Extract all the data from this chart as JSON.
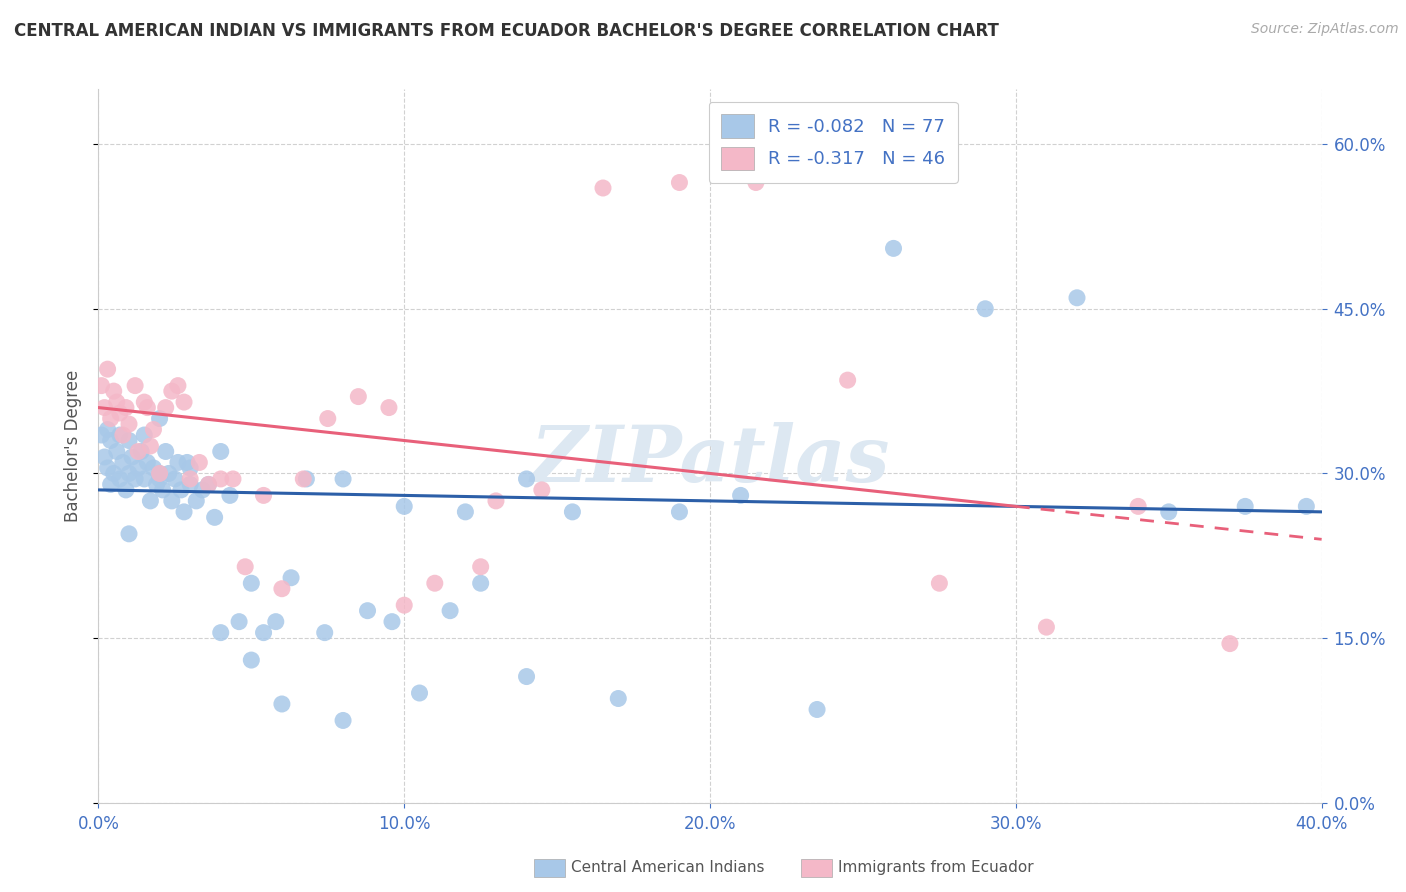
{
  "title": "CENTRAL AMERICAN INDIAN VS IMMIGRANTS FROM ECUADOR BACHELOR'S DEGREE CORRELATION CHART",
  "source": "Source: ZipAtlas.com",
  "ylabel": "Bachelor's Degree",
  "xmin": 0.0,
  "xmax": 0.4,
  "ymin": 0.0,
  "ymax": 0.65,
  "yticks": [
    0.0,
    0.15,
    0.3,
    0.45,
    0.6
  ],
  "xticks": [
    0.0,
    0.1,
    0.2,
    0.3,
    0.4
  ],
  "legend_r1": "-0.082",
  "legend_n1": "77",
  "legend_r2": "-0.317",
  "legend_n2": "46",
  "legend_label1": "Central American Indians",
  "legend_label2": "Immigrants from Ecuador",
  "color_blue": "#a8c8e8",
  "color_pink": "#f4b8c8",
  "color_blue_line": "#2c5fa8",
  "color_pink_line": "#e8607a",
  "watermark": "ZIPatlas",
  "blue_x": [
    0.001,
    0.002,
    0.003,
    0.003,
    0.004,
    0.004,
    0.005,
    0.006,
    0.007,
    0.007,
    0.008,
    0.009,
    0.01,
    0.01,
    0.011,
    0.012,
    0.013,
    0.014,
    0.015,
    0.015,
    0.016,
    0.017,
    0.018,
    0.019,
    0.02,
    0.02,
    0.021,
    0.022,
    0.023,
    0.024,
    0.025,
    0.026,
    0.027,
    0.028,
    0.029,
    0.03,
    0.032,
    0.034,
    0.036,
    0.038,
    0.04,
    0.043,
    0.046,
    0.05,
    0.054,
    0.058,
    0.063,
    0.068,
    0.074,
    0.08,
    0.088,
    0.096,
    0.105,
    0.115,
    0.125,
    0.14,
    0.155,
    0.17,
    0.19,
    0.21,
    0.235,
    0.26,
    0.29,
    0.32,
    0.35,
    0.375,
    0.395,
    0.01,
    0.02,
    0.03,
    0.04,
    0.05,
    0.06,
    0.08,
    0.1,
    0.12,
    0.14
  ],
  "blue_y": [
    0.335,
    0.315,
    0.34,
    0.305,
    0.33,
    0.29,
    0.3,
    0.32,
    0.335,
    0.295,
    0.31,
    0.285,
    0.33,
    0.3,
    0.315,
    0.295,
    0.305,
    0.32,
    0.335,
    0.295,
    0.31,
    0.275,
    0.305,
    0.29,
    0.35,
    0.3,
    0.285,
    0.32,
    0.3,
    0.275,
    0.295,
    0.31,
    0.285,
    0.265,
    0.31,
    0.29,
    0.275,
    0.285,
    0.29,
    0.26,
    0.32,
    0.28,
    0.165,
    0.2,
    0.155,
    0.165,
    0.205,
    0.295,
    0.155,
    0.295,
    0.175,
    0.165,
    0.1,
    0.175,
    0.2,
    0.295,
    0.265,
    0.095,
    0.265,
    0.28,
    0.085,
    0.505,
    0.45,
    0.46,
    0.265,
    0.27,
    0.27,
    0.245,
    0.295,
    0.305,
    0.155,
    0.13,
    0.09,
    0.075,
    0.27,
    0.265,
    0.115
  ],
  "pink_x": [
    0.001,
    0.002,
    0.003,
    0.004,
    0.005,
    0.006,
    0.007,
    0.008,
    0.009,
    0.01,
    0.012,
    0.013,
    0.015,
    0.016,
    0.017,
    0.018,
    0.02,
    0.022,
    0.024,
    0.026,
    0.028,
    0.03,
    0.033,
    0.036,
    0.04,
    0.044,
    0.048,
    0.054,
    0.06,
    0.067,
    0.075,
    0.085,
    0.095,
    0.11,
    0.125,
    0.145,
    0.165,
    0.19,
    0.215,
    0.245,
    0.275,
    0.31,
    0.34,
    0.37,
    0.1,
    0.13
  ],
  "pink_y": [
    0.38,
    0.36,
    0.395,
    0.35,
    0.375,
    0.365,
    0.355,
    0.335,
    0.36,
    0.345,
    0.38,
    0.32,
    0.365,
    0.36,
    0.325,
    0.34,
    0.3,
    0.36,
    0.375,
    0.38,
    0.365,
    0.295,
    0.31,
    0.29,
    0.295,
    0.295,
    0.215,
    0.28,
    0.195,
    0.295,
    0.35,
    0.37,
    0.36,
    0.2,
    0.215,
    0.285,
    0.56,
    0.565,
    0.565,
    0.385,
    0.2,
    0.16,
    0.27,
    0.145,
    0.18,
    0.275
  ]
}
